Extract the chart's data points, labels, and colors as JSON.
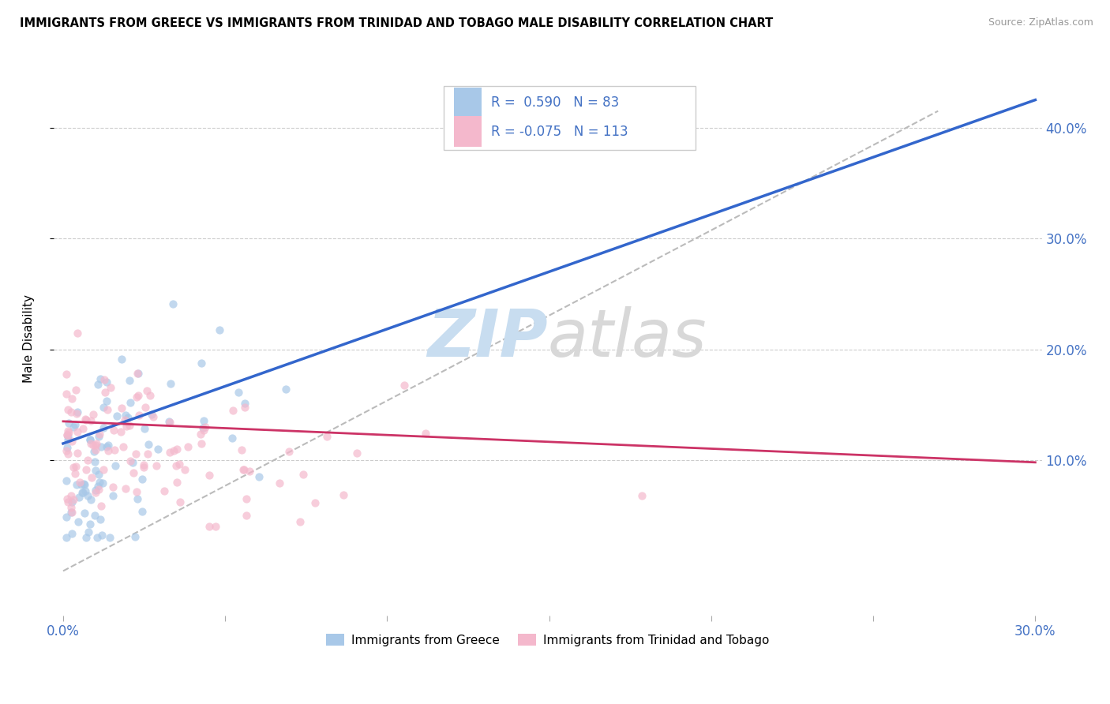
{
  "title": "IMMIGRANTS FROM GREECE VS IMMIGRANTS FROM TRINIDAD AND TOBAGO MALE DISABILITY CORRELATION CHART",
  "source": "Source: ZipAtlas.com",
  "ylabel": "Male Disability",
  "r_greece": 0.59,
  "n_greece": 83,
  "r_tt": -0.075,
  "n_tt": 113,
  "color_greece": "#a8c8e8",
  "color_tt": "#f4b8cc",
  "line_color_greece": "#3366cc",
  "line_color_tt": "#cc3366",
  "xlim": [
    0.0,
    0.3
  ],
  "ylim": [
    -0.04,
    0.46
  ],
  "greece_line": {
    "x0": 0.0,
    "y0": 0.115,
    "x1": 0.3,
    "y1": 0.425
  },
  "tt_line": {
    "x0": 0.0,
    "y0": 0.135,
    "x1": 0.3,
    "y1": 0.098
  },
  "dash_line": {
    "x0": 0.0,
    "y0": 0.0,
    "x1": 0.27,
    "y1": 0.415
  },
  "watermark_zip_color": "#c8ddf0",
  "watermark_atlas_color": "#d8d8d8",
  "legend_color": "#4472c4",
  "grid_color": "#cccccc",
  "tick_color": "#4472c4"
}
